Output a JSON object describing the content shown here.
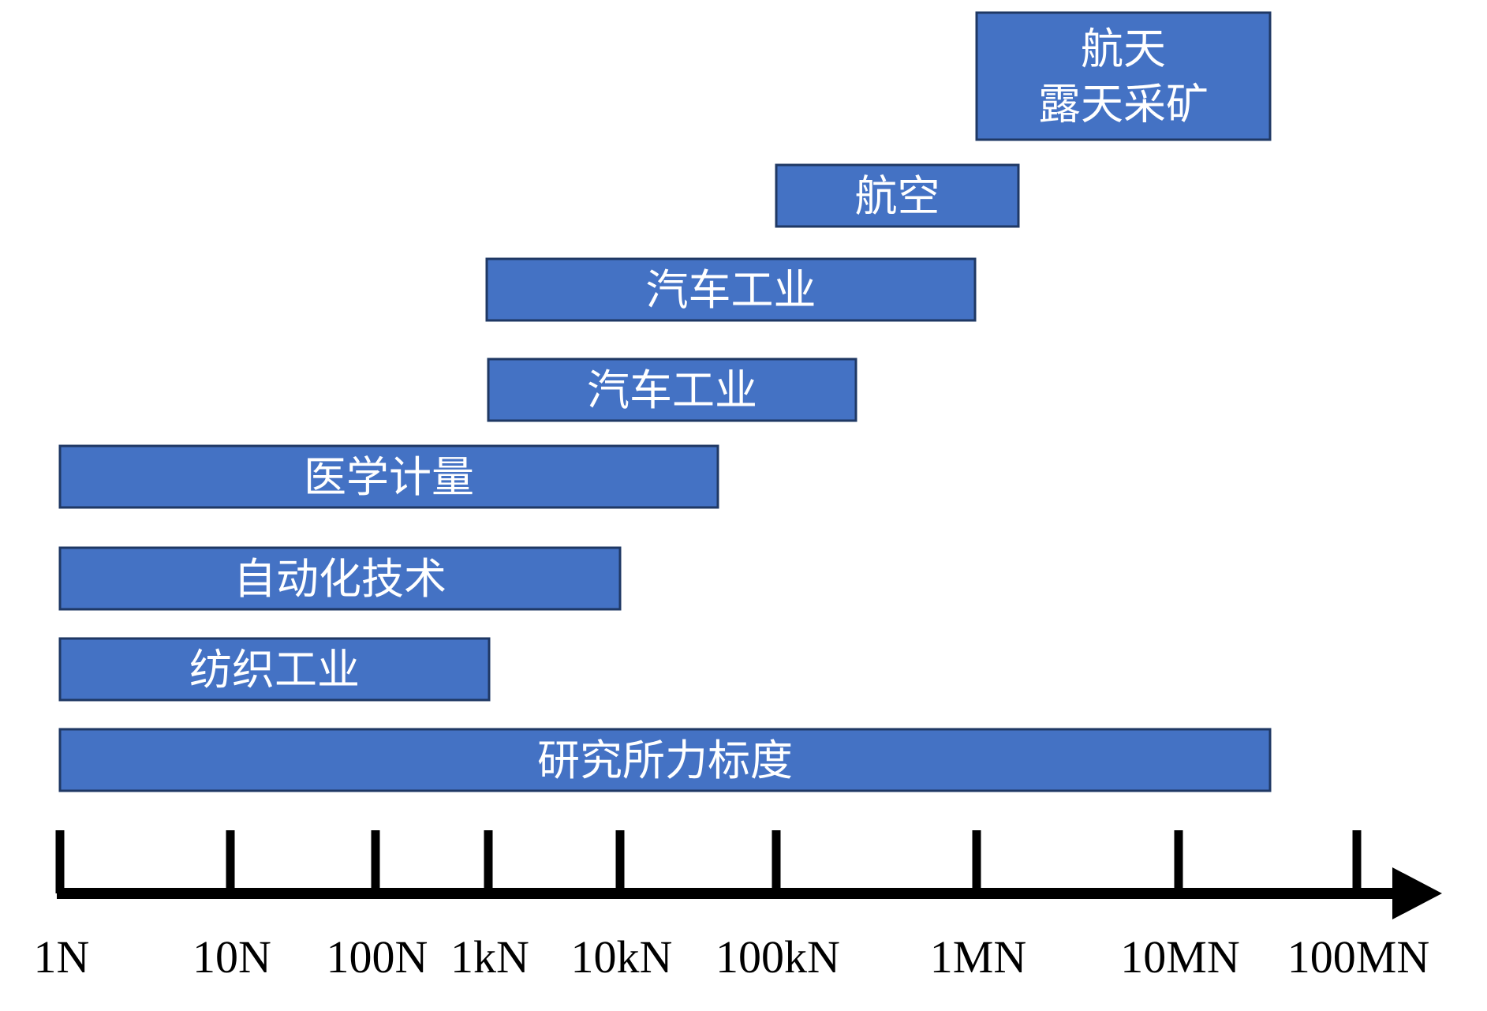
{
  "chart_data": {
    "type": "bar",
    "orientation": "horizontal-range",
    "axis": {
      "scale": "log",
      "ticks": [
        "1N",
        "10N",
        "100N",
        "1kN",
        "10kN",
        "100kN",
        "1MN",
        "10MN",
        "100MN"
      ]
    },
    "bars": [
      {
        "lines": [
          "研究所力标度"
        ],
        "range": [
          "1N",
          "10MN"
        ]
      },
      {
        "lines": [
          "纺织工业"
        ],
        "range": [
          "1N",
          "1kN"
        ]
      },
      {
        "lines": [
          "自动化技术"
        ],
        "range": [
          "1N",
          "10kN"
        ]
      },
      {
        "lines": [
          "医学计量"
        ],
        "range": [
          "1N",
          "100kN"
        ]
      },
      {
        "lines": [
          "汽车工业"
        ],
        "range": [
          "1kN",
          "100kN"
        ]
      },
      {
        "lines": [
          "汽车工业"
        ],
        "range": [
          "1kN",
          "1MN"
        ]
      },
      {
        "lines": [
          "航空"
        ],
        "range": [
          "100kN",
          "1MN"
        ]
      },
      {
        "lines": [
          "航天",
          "露天采矿"
        ],
        "range": [
          "1MN",
          "10MN"
        ]
      }
    ],
    "colors": {
      "bar_fill": "#4472c4",
      "bar_border": "#1f3864",
      "axis": "#000000"
    }
  }
}
